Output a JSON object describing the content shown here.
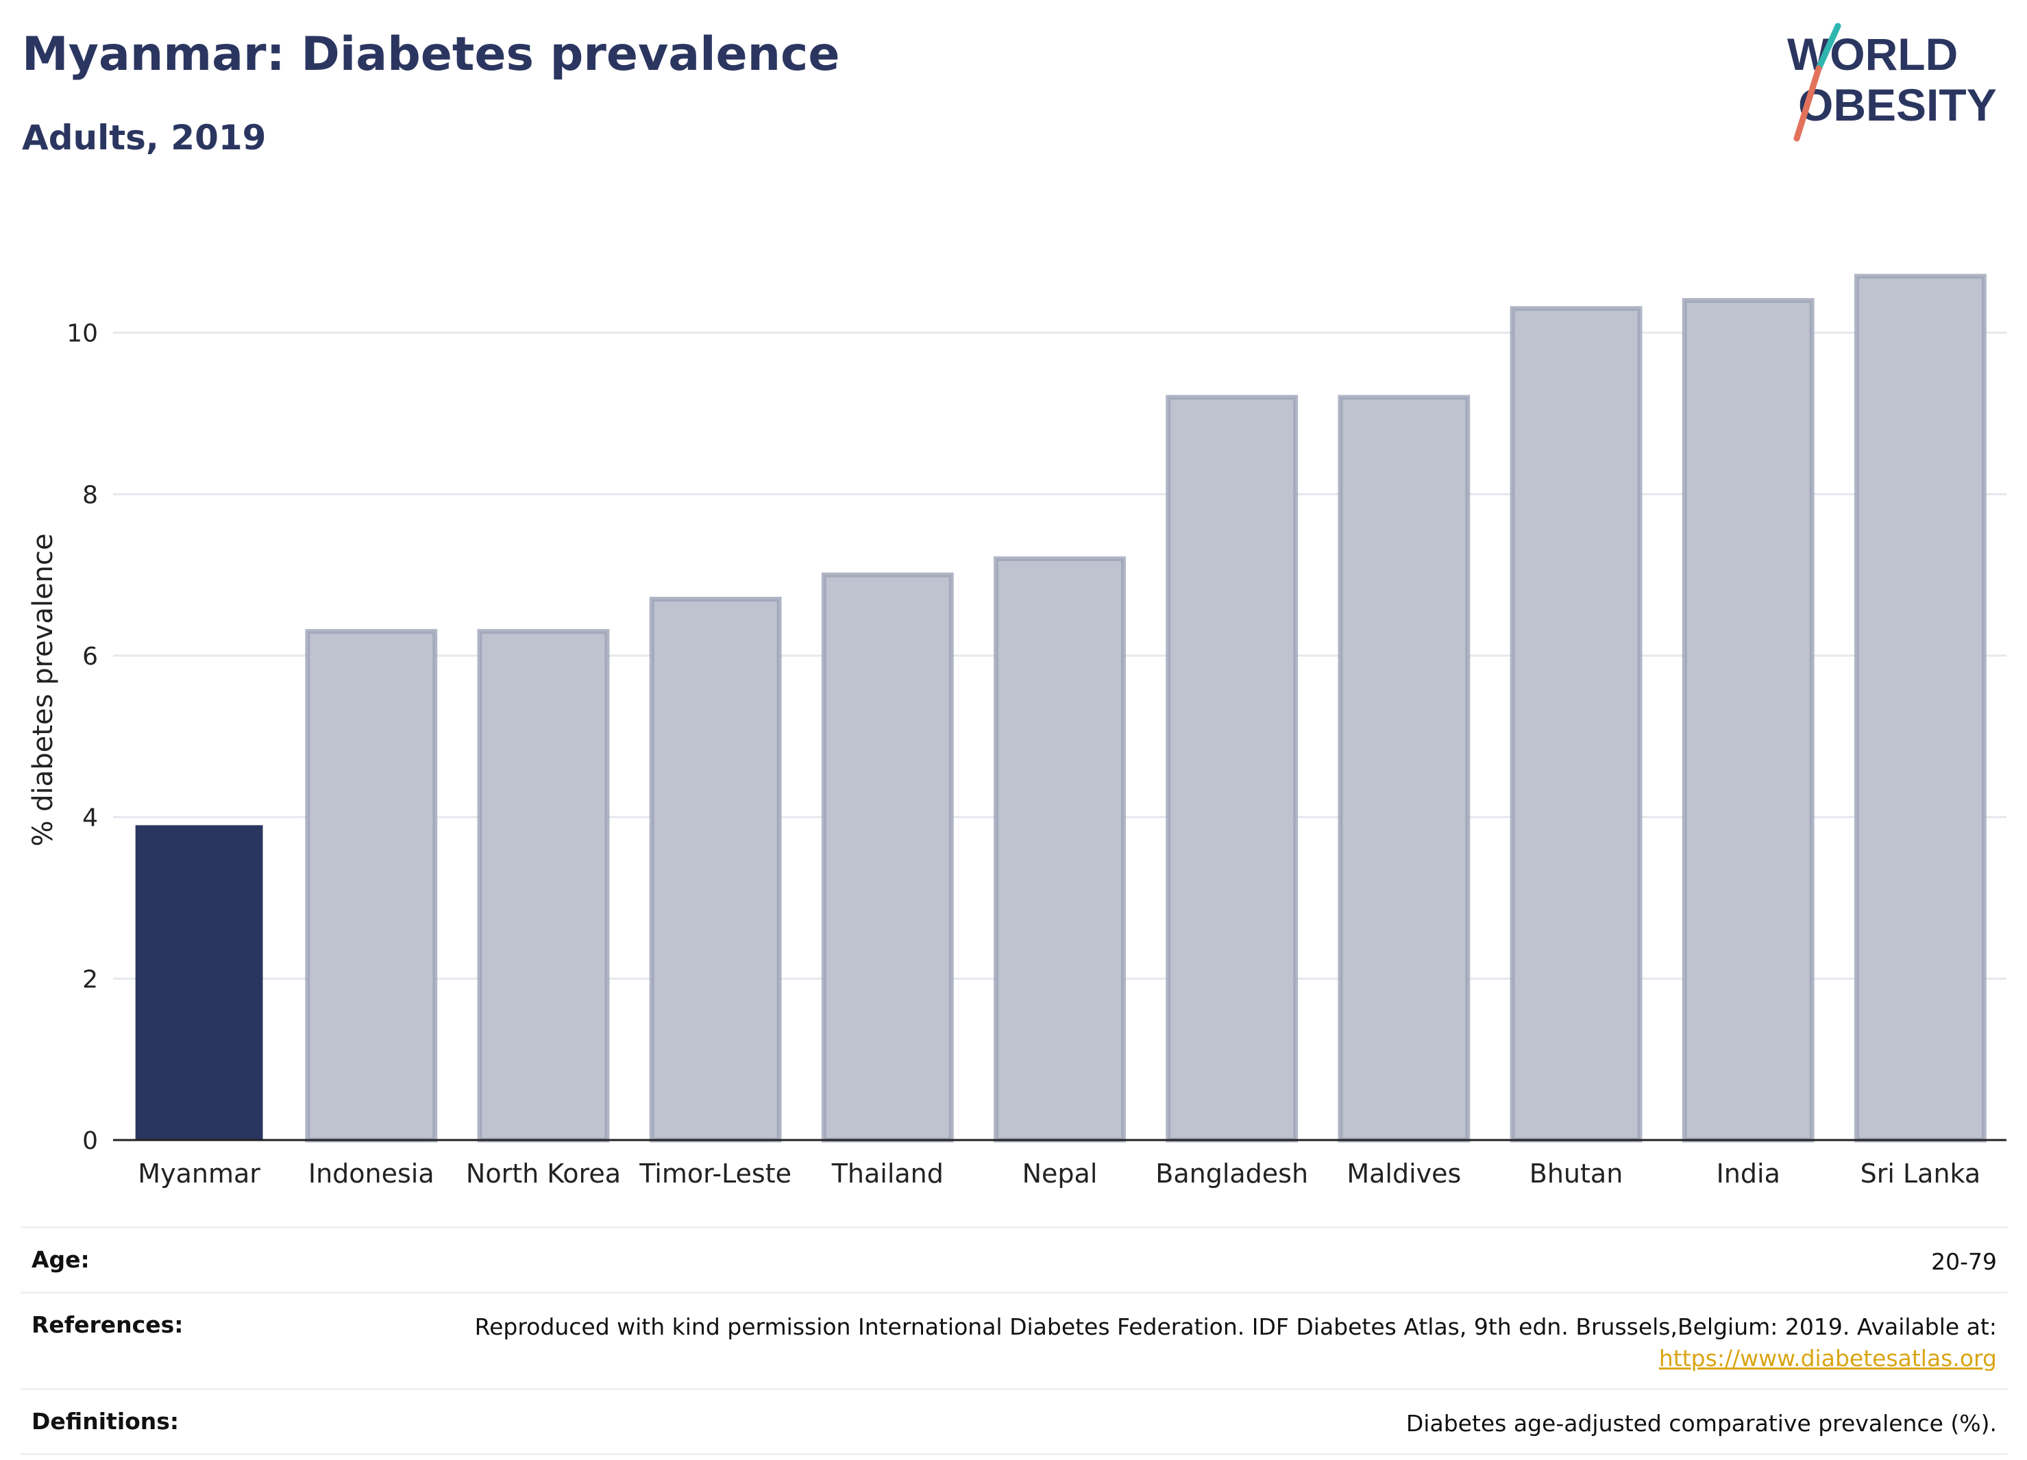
{
  "header": {
    "title": "Myanmar: Diabetes prevalence",
    "subtitle": "Adults, 2019"
  },
  "logo": {
    "line1": "WORLD",
    "line2": "OBESITY"
  },
  "chart_data": {
    "type": "bar",
    "categories": [
      "Myanmar",
      "Indonesia",
      "North Korea",
      "Timor-Leste",
      "Thailand",
      "Nepal",
      "Bangladesh",
      "Maldives",
      "Bhutan",
      "India",
      "Sri Lanka"
    ],
    "values": [
      3.9,
      6.3,
      6.3,
      6.7,
      7.0,
      7.2,
      9.2,
      9.2,
      10.3,
      10.4,
      10.7
    ],
    "highlight": "Myanmar",
    "ylabel": "% diabetes prevalence",
    "ylim": [
      0,
      12
    ],
    "yticks": [
      0,
      2,
      4,
      6,
      8,
      10
    ],
    "grid": true,
    "colors": {
      "highlight": "#2b3660",
      "other": "#bfc3cf",
      "other_border": "#9ea4b8"
    }
  },
  "footer": {
    "age_label": "Age:",
    "age_value": "20-79",
    "references_label": "References:",
    "references_value": "Reproduced with kind permission International Diabetes Federation. IDF Diabetes Atlas, 9th edn. Brussels,Belgium: 2019. Available at:",
    "references_link": "https://www.diabetesatlas.org",
    "definitions_label": "Definitions:",
    "definitions_value": "Diabetes age-adjusted comparative prevalence (%)."
  }
}
